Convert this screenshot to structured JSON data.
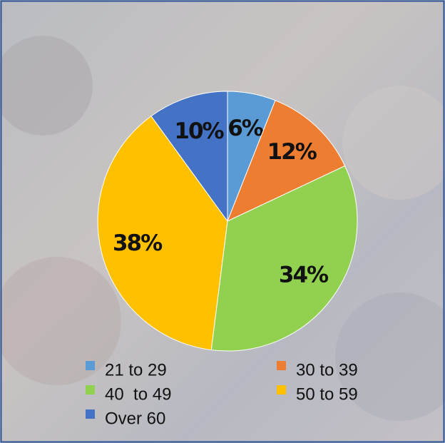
{
  "chart_data": {
    "type": "pie",
    "categories": [
      "21 to 29",
      "30 to 39",
      "40  to 49",
      "50 to 59",
      "Over 60"
    ],
    "values": [
      6,
      12,
      34,
      38,
      10
    ],
    "value_labels": [
      "6%",
      "12%",
      "34%",
      "38%",
      "10%"
    ],
    "colors": [
      "#5b9bd5",
      "#ed7d31",
      "#92d050",
      "#ffc000",
      "#4472c4"
    ],
    "legend": "bottom"
  }
}
